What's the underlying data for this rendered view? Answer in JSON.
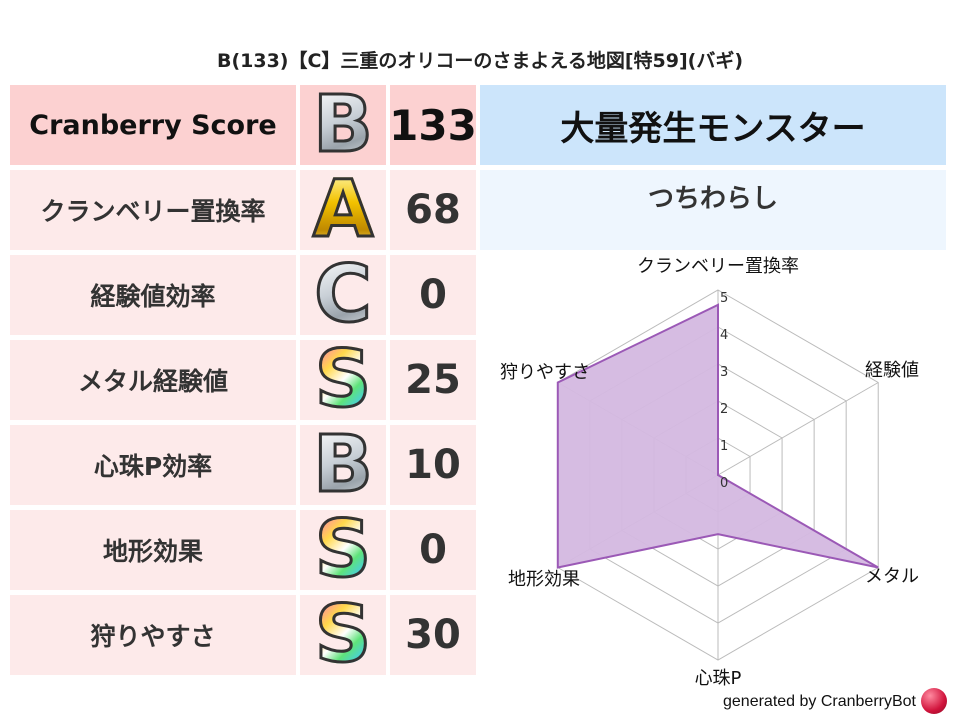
{
  "title": "B(133)【C】三重のオリコーのさまよえる地図[特59](バギ)",
  "score_table": {
    "header": {
      "label": "Cranberry Score",
      "grade": "B",
      "grade_style": "silver",
      "value": "133"
    },
    "rows": [
      {
        "label": "クランベリー置換率",
        "grade": "A",
        "grade_style": "gold",
        "value": "68"
      },
      {
        "label": "経験値効率",
        "grade": "C",
        "grade_style": "silver",
        "value": "0"
      },
      {
        "label": "メタル経験値",
        "grade": "S",
        "grade_style": "rainbow",
        "value": "25"
      },
      {
        "label": "心珠P効率",
        "grade": "B",
        "grade_style": "silver",
        "value": "10"
      },
      {
        "label": "地形効果",
        "grade": "S",
        "grade_style": "rainbow",
        "value": "0"
      },
      {
        "label": "狩りやすさ",
        "grade": "S",
        "grade_style": "rainbow",
        "value": "30"
      }
    ]
  },
  "monster": {
    "header": "大量発生モンスター",
    "name": "つちわらし"
  },
  "chart_data": {
    "type": "radar",
    "categories": [
      "クランベリー置換率",
      "経験値",
      "メタル",
      "心珠P",
      "地形効果",
      "狩りやすさ"
    ],
    "values": [
      4.6,
      0,
      5,
      1.6,
      5,
      5
    ],
    "range": [
      0,
      5
    ],
    "ticks": [
      "0",
      "1",
      "2",
      "3",
      "4",
      "5"
    ],
    "fill_color": "#d4b8e0",
    "line_color": "#9b59b6",
    "grid": true
  },
  "footer": "generated by CranberryBot",
  "colors": {
    "header_bg": "#fcd1d1",
    "row_bg": "#fdeaea",
    "monster_header_bg": "#cce5fb",
    "monster_name_bg": "#eef6fe"
  }
}
